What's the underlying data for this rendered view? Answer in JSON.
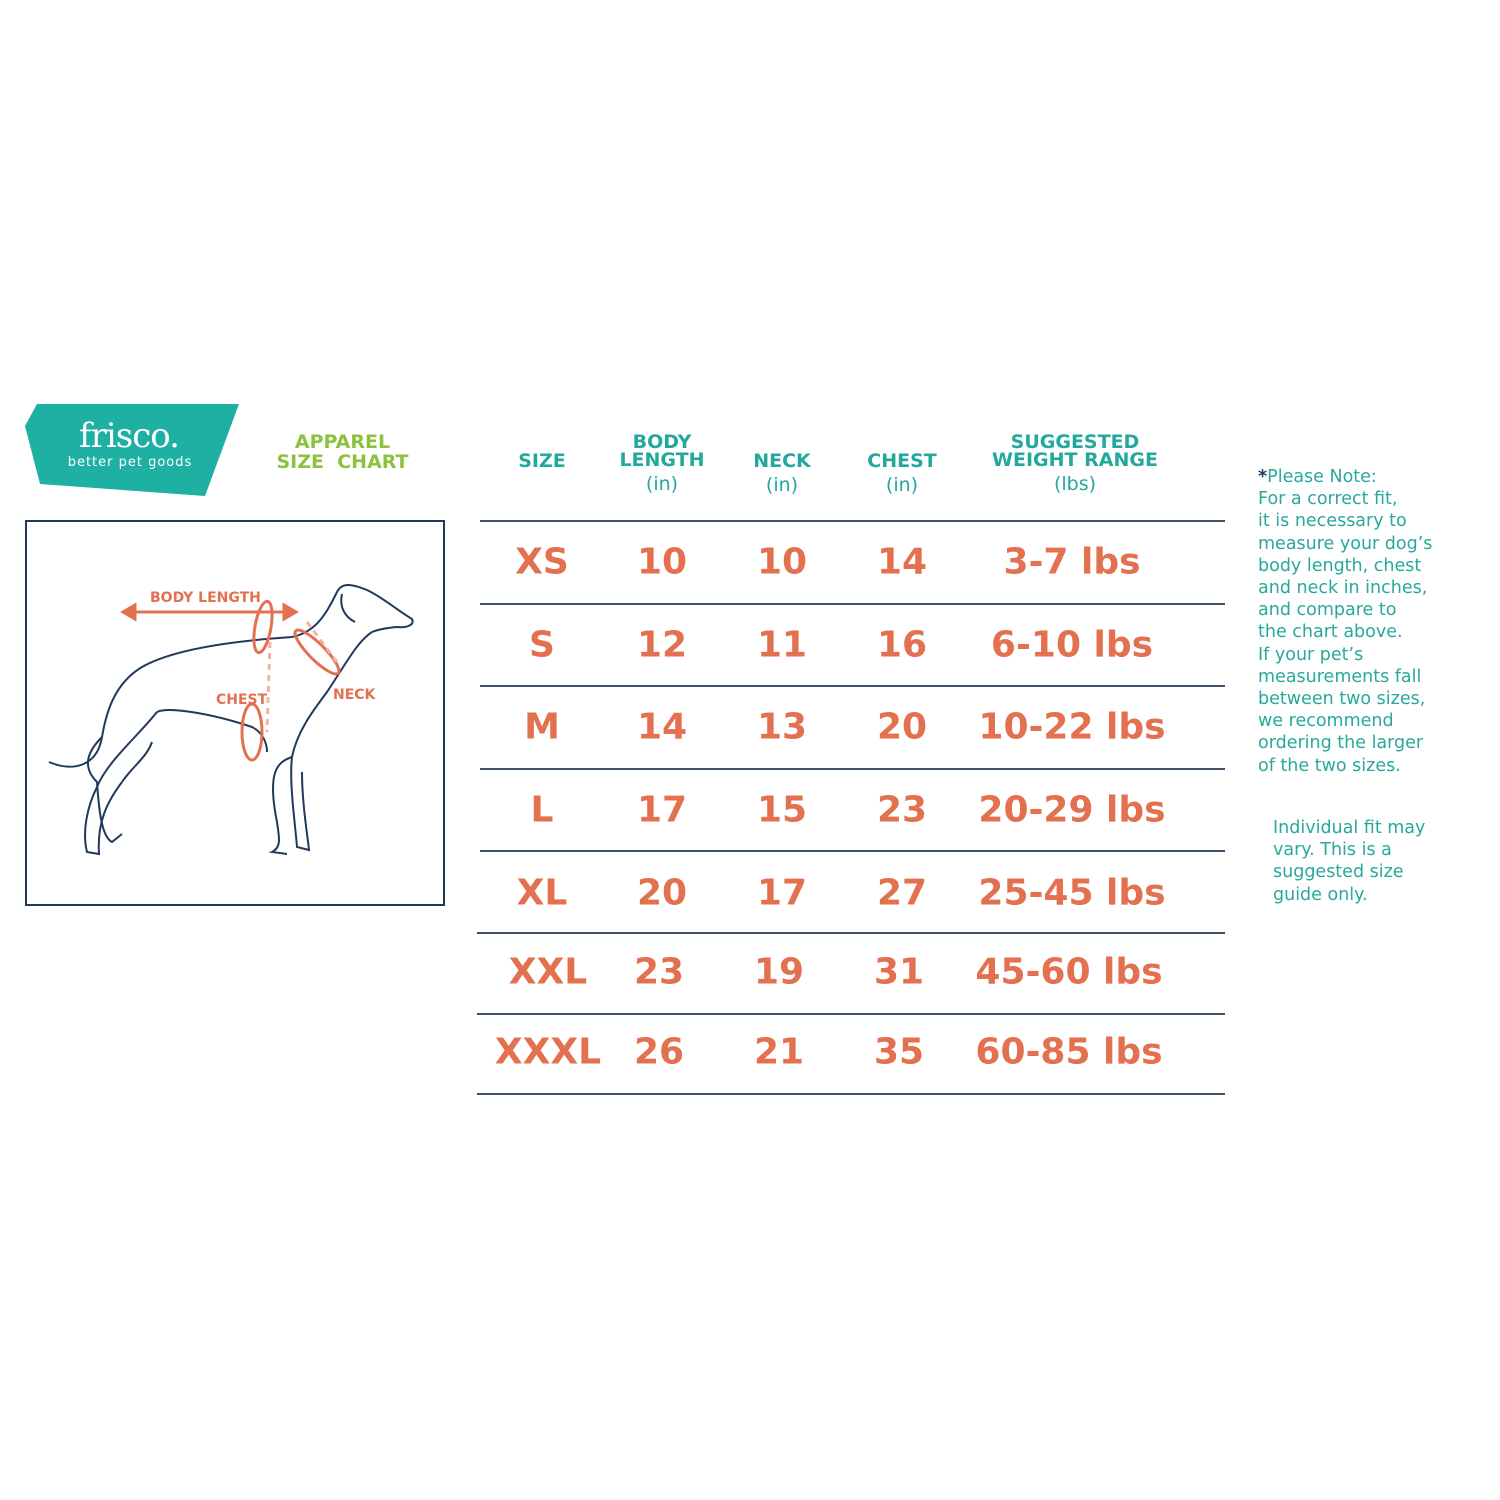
{
  "brand": {
    "name": "frisco.",
    "tagline": "better pet goods",
    "color": "#1fb0a4"
  },
  "title": {
    "line1": "APPAREL",
    "line2": "SIZE  CHART",
    "color": "#8dc23f"
  },
  "diagram": {
    "labels": {
      "body_length": "BODY LENGTH",
      "chest": "CHEST",
      "neck": "NECK"
    }
  },
  "table": {
    "columns": [
      {
        "label": "SIZE",
        "unit": ""
      },
      {
        "label": "BODY\nLENGTH",
        "unit": "(in)"
      },
      {
        "label": "NECK",
        "unit": "(in)"
      },
      {
        "label": "CHEST",
        "unit": "(in)"
      },
      {
        "label": "SUGGESTED\nWEIGHT RANGE",
        "unit": "(lbs)"
      }
    ],
    "rows": [
      [
        "XS",
        "10",
        "10",
        "14",
        "3-7 lbs"
      ],
      [
        "S",
        "12",
        "11",
        "16",
        "6-10 lbs"
      ],
      [
        "M",
        "14",
        "13",
        "20",
        "10-22 lbs"
      ],
      [
        "L",
        "17",
        "15",
        "23",
        "20-29 lbs"
      ],
      [
        "XL",
        "20",
        "17",
        "27",
        "25-45 lbs"
      ],
      [
        "XXL",
        "23",
        "19",
        "31",
        "45-60 lbs"
      ],
      [
        "XXXL",
        "26",
        "21",
        "35",
        "60-85 lbs"
      ]
    ],
    "header_color": "#22a89c",
    "value_color": "#e3704f"
  },
  "note": {
    "asterisk": "*",
    "text": "Please Note:\nFor a correct fit,\nit is necessary to\nmeasure your dog’s\nbody length, chest\nand neck in inches,\nand compare to\nthe chart above.\nIf your pet’s\nmeasurements fall\nbetween two sizes,\nwe recommend\nordering the larger\nof the two sizes.",
    "disclaimer": "Individual fit may\nvary. This is a\nsuggested size\nguide only."
  }
}
